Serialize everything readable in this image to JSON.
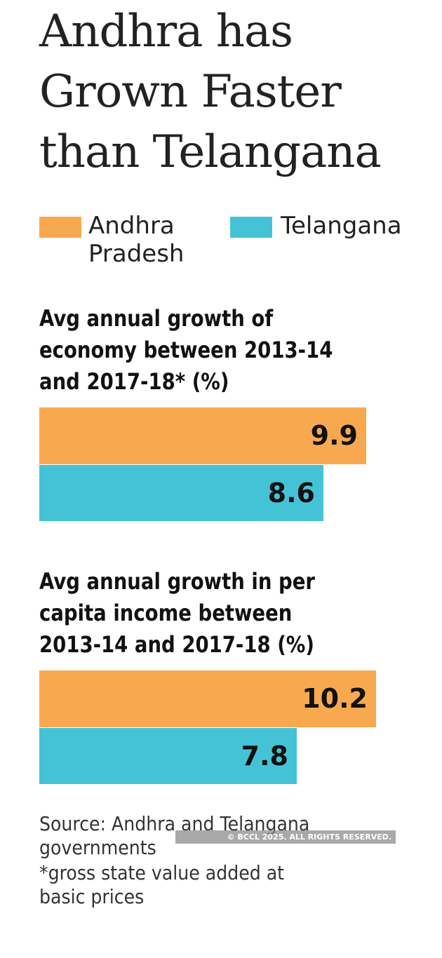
{
  "title_lines": [
    "Andhra has",
    "Grown Faster",
    "than Telangana"
  ],
  "colors": {
    "andhra": "#F8A94F",
    "telangana": "#45C3D6"
  },
  "legend": [
    {
      "label_lines": [
        "Andhra",
        "Pradesh"
      ],
      "color": "#F8A94F"
    },
    {
      "label_lines": [
        "Telangana"
      ],
      "color": "#45C3D6"
    }
  ],
  "chart_data": [
    {
      "type": "bar",
      "orientation": "horizontal",
      "title_lines": [
        "Avg annual growth of",
        "economy between 2013-14",
        "and 2017-18* (%)"
      ],
      "series": [
        {
          "name": "Andhra Pradesh",
          "value": 9.9,
          "label": "9.9"
        },
        {
          "name": "Telangana",
          "value": 8.6,
          "label": "8.6"
        }
      ]
    },
    {
      "type": "bar",
      "orientation": "horizontal",
      "title_lines": [
        "Avg annual growth in per",
        "capita income between",
        "2013-14 and 2017-18 (%)"
      ],
      "series": [
        {
          "name": "Andhra Pradesh",
          "value": 10.2,
          "label": "10.2"
        },
        {
          "name": "Telangana",
          "value": 7.8,
          "label": "7.8"
        }
      ]
    }
  ],
  "notes": {
    "source_lines": [
      "Source: Andhra and Telangana",
      "governments"
    ],
    "footnote_lines": [
      "*gross state value added at",
      "basic prices"
    ]
  },
  "watermark": "© BCCL 2025. ALL RIGHTS RESERVED."
}
